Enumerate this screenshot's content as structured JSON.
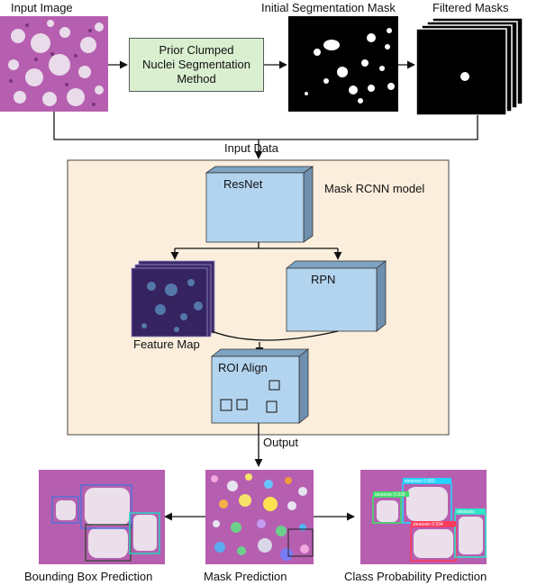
{
  "labels": {
    "input_image": "Input Image",
    "initial_mask": "Initial Segmentation Mask",
    "filtered_masks": "Filtered Masks",
    "prior_method": "Prior Clumped\nNuclei Segmentation\nMethod",
    "input_data": "Input Data",
    "model_title": "Mask RCNN model",
    "resnet": "ResNet",
    "rpn": "RPN",
    "feature_map": "Feature Map",
    "roi_align": "ROI Align",
    "output": "Output",
    "bbox_pred": "Bounding Box Prediction",
    "mask_pred": "Mask Prediction",
    "class_pred": "Class Probability Prediction"
  },
  "class_tags": [
    "steatosis 0.983",
    "steatosis 0.928",
    "steatosis 0.934",
    "steatosis"
  ],
  "colors": {
    "model_bg": "#fbeedd",
    "box_front": "#b3d4ef",
    "box_top": "#7fa3c2",
    "box_side": "#6f8fae",
    "prior_bg": "#d9efcf",
    "tissue": "#b65fb0",
    "feature_map": "#3b2a6b"
  }
}
